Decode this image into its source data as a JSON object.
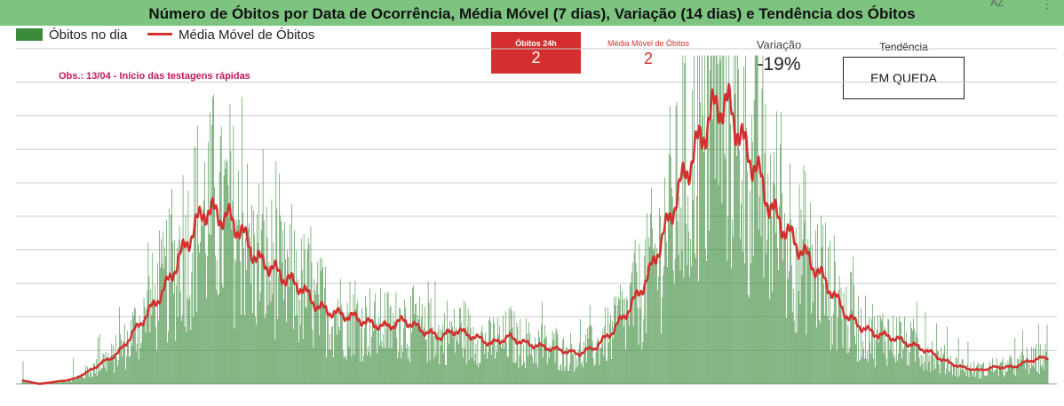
{
  "header": {
    "title": "Número de Óbitos por Data de Ocorrência, Média Móvel (7 dias), Variação (14 dias) e Tendência dos Óbitos",
    "sort_icon_text": "AZ",
    "more_icon_text": "⋮",
    "color": "#7cc47f"
  },
  "legend": {
    "bars_label": "Óbitos no dia",
    "line_label": "Média Móvel de Óbitos"
  },
  "note": "Obs.: 13/04 - Início das testagens rápidas",
  "scorecards": {
    "obitos_24h": {
      "label": "Óbitos 24h",
      "value": "2"
    },
    "media_movel": {
      "label": "Média Móvel de Óbitos",
      "value": "2"
    },
    "variacao": {
      "label": "Variação",
      "value": "-19%"
    },
    "tendencia": {
      "label": "Tendência",
      "value": "EM QUEDA"
    }
  },
  "colors": {
    "bars": "#3a8a3a",
    "line": "#d32f2f",
    "grid": "#cccccc",
    "card_red": "#d32f2f"
  },
  "chart_data": {
    "type": "bar",
    "ylim": [
      0,
      10
    ],
    "grid": true,
    "legend_position": "top-left",
    "series": [
      {
        "name": "Óbitos no dia",
        "type": "bar"
      },
      {
        "name": "Média Móvel de Óbitos",
        "type": "line"
      }
    ],
    "moving_average_keypoints": [
      [
        0,
        0.1
      ],
      [
        20,
        0.0
      ],
      [
        50,
        0.1
      ],
      [
        60,
        0.15
      ],
      [
        75,
        0.35
      ],
      [
        90,
        0.6
      ],
      [
        110,
        0.9
      ],
      [
        130,
        1.6
      ],
      [
        150,
        2.3
      ],
      [
        165,
        2.9
      ],
      [
        180,
        3.7
      ],
      [
        195,
        4.5
      ],
      [
        210,
        5.2
      ],
      [
        220,
        5.1
      ],
      [
        230,
        5.0
      ],
      [
        240,
        4.9
      ],
      [
        250,
        4.6
      ],
      [
        260,
        4.2
      ],
      [
        270,
        3.7
      ],
      [
        280,
        3.6
      ],
      [
        290,
        3.4
      ],
      [
        300,
        3.2
      ],
      [
        320,
        2.9
      ],
      [
        340,
        2.3
      ],
      [
        360,
        2.1
      ],
      [
        380,
        2.0
      ],
      [
        400,
        1.8
      ],
      [
        420,
        1.7
      ],
      [
        440,
        1.9
      ],
      [
        460,
        1.6
      ],
      [
        480,
        1.4
      ],
      [
        500,
        1.6
      ],
      [
        520,
        1.4
      ],
      [
        540,
        1.2
      ],
      [
        560,
        1.4
      ],
      [
        580,
        1.2
      ],
      [
        600,
        1.1
      ],
      [
        620,
        1.0
      ],
      [
        640,
        0.9
      ],
      [
        660,
        1.1
      ],
      [
        680,
        1.6
      ],
      [
        700,
        2.3
      ],
      [
        720,
        3.2
      ],
      [
        740,
        4.6
      ],
      [
        760,
        6.1
      ],
      [
        780,
        7.3
      ],
      [
        800,
        8.4
      ],
      [
        815,
        8.2
      ],
      [
        830,
        7.1
      ],
      [
        845,
        6.4
      ],
      [
        860,
        5.3
      ],
      [
        875,
        4.7
      ],
      [
        890,
        4.2
      ],
      [
        905,
        3.7
      ],
      [
        920,
        3.2
      ],
      [
        935,
        2.6
      ],
      [
        950,
        2.0
      ],
      [
        965,
        1.7
      ],
      [
        980,
        1.5
      ],
      [
        1000,
        1.4
      ],
      [
        1020,
        1.2
      ],
      [
        1040,
        1.0
      ],
      [
        1060,
        0.7
      ],
      [
        1080,
        0.5
      ],
      [
        1100,
        0.4
      ],
      [
        1120,
        0.5
      ],
      [
        1140,
        0.5
      ],
      [
        1160,
        0.7
      ],
      [
        1180,
        0.8
      ]
    ]
  }
}
